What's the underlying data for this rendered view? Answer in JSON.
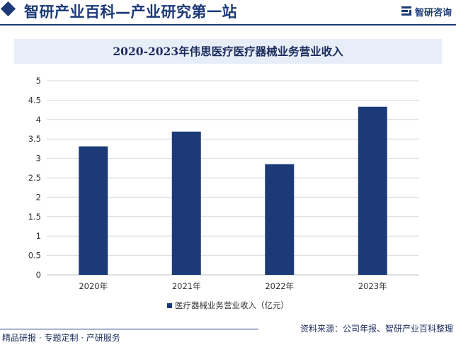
{
  "header": {
    "site_title": "智研产业百科—产业研究第一站",
    "brand": "智研咨询"
  },
  "colors": {
    "accent": "#1c3a78",
    "title_bg": "#e8eef8"
  },
  "chart_data": {
    "type": "bar",
    "title": "2020-2023年伟思医疗医疗器械业务营业收入",
    "categories": [
      "2020年",
      "2021年",
      "2022年",
      "2023年"
    ],
    "series": [
      {
        "name": "医疗器械业务营业收入（亿元）",
        "values": [
          3.31,
          3.69,
          2.85,
          4.33
        ],
        "color": "#1c3a78"
      }
    ],
    "yticks": [
      "0",
      "0.5",
      "1",
      "1.5",
      "2",
      "2.5",
      "3",
      "3.5",
      "4",
      "4.5",
      "5"
    ],
    "ylim": [
      0,
      5
    ],
    "grid": true,
    "legend_position": "bottom-center"
  },
  "footer": {
    "left": "精品研报 · 专题定制 · 产研服务",
    "right": "资料来源：公司年报、智研产业百科整理"
  }
}
